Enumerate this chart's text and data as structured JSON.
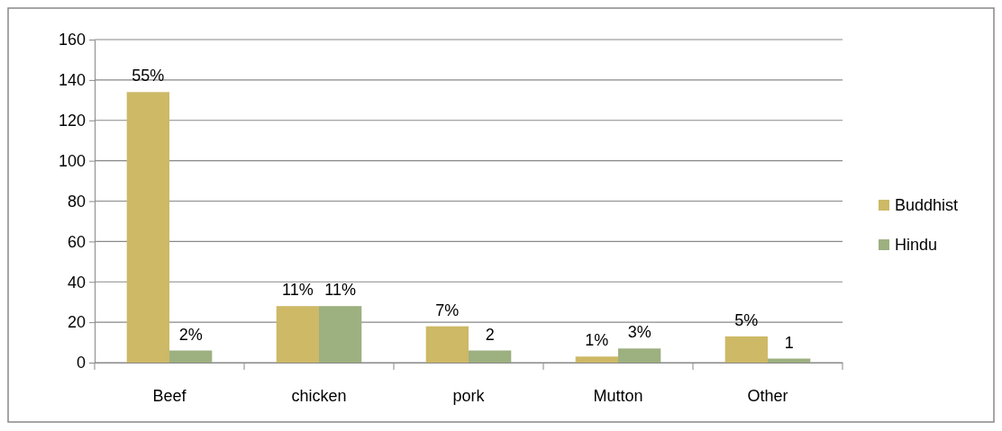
{
  "chart_data": {
    "type": "bar",
    "categories": [
      "Beef",
      "chicken",
      "pork",
      "Mutton",
      "Other"
    ],
    "series": [
      {
        "name": "Buddhist",
        "color": "#cdb966",
        "values": [
          134,
          28,
          18,
          3,
          13
        ]
      },
      {
        "name": "Hindu",
        "color": "#9db080",
        "values": [
          6,
          28,
          6,
          7,
          2
        ]
      }
    ],
    "annotations": [
      {
        "text": "55%",
        "x": "Beef",
        "y": 134
      },
      {
        "text": "2%",
        "x": "Beef",
        "y": 6
      },
      {
        "text": "11%",
        "x": "chicken",
        "y": 28
      },
      {
        "text": "11%",
        "x": "chicken",
        "y": 28
      },
      {
        "text": "7%",
        "x": "pork",
        "y": 18
      },
      {
        "text": "2",
        "x": "pork",
        "y": 6
      },
      {
        "text": "1%",
        "x": "Mutton",
        "y": 3
      },
      {
        "text": "3%",
        "x": "Mutton",
        "y": 7
      },
      {
        "text": "5%",
        "x": "Other",
        "y": 13
      },
      {
        "text": "1",
        "x": "Other",
        "y": 2
      }
    ],
    "ylim": [
      0,
      160
    ],
    "yticks": [
      0,
      20,
      40,
      60,
      80,
      100,
      120,
      140,
      160
    ],
    "grid": "y",
    "legend": "right"
  }
}
